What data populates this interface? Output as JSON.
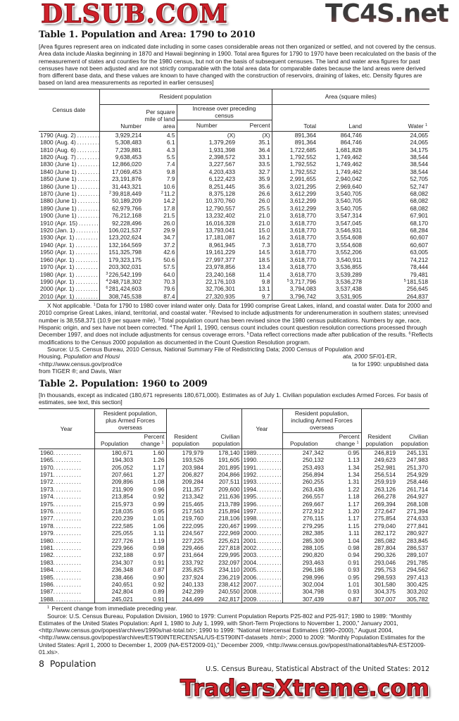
{
  "watermarks": {
    "top_right": "TC4S.net",
    "middle": "DLSUB.COM",
    "bottom": "TradersXtreme.com"
  },
  "table1": {
    "title": "Table 1. Population and Area: 1790 to 2010",
    "intro": "[Area figures represent area on indicated date including in some cases considerable areas not then organized or settled, and not covered by the census. Area data include Alaska beginning in 1870 and Hawaii beginning in 1900. Total area figures for 1790 to 1970 have been recalculated on the basis of the remeasurement of states and counties for the 1980 census, but not on the basis of subsequent censuses. The land and water area figures for past censuses have not been adjusted and are not strictly comparable with the total area data for comparable dates because the land areas were derived from different base data, and these values are known to have changed with the construction of reservoirs, draining of lakes, etc. Density figures are based on land area measurements as reported in earlier censuses]",
    "headers": {
      "census_date": "Census date",
      "resident_population": "Resident population",
      "area": "Area (square miles)",
      "number": "Number",
      "per_square_mile": "Per square mile of land area",
      "increase": "Increase over preceding census",
      "inc_number": "Number",
      "inc_percent": "Percent",
      "total": "Total",
      "land": "Land",
      "water": "Water",
      "water_note": "1"
    },
    "rows": [
      [
        "1790 (Aug. 2)",
        "3,929,214",
        "4.5",
        "(X)",
        "(X)",
        "891,364",
        "864,746",
        "24,065"
      ],
      [
        "1800 (Aug. 4)",
        "5,308,483",
        "6.1",
        "1,379,269",
        "35.1",
        "891,364",
        "864,746",
        "24,065"
      ],
      [
        "1810 (Aug. 6)",
        "7,239,881",
        "4.3",
        "1,931,398",
        "36.4",
        "1,722,685",
        "1,681,828",
        "34,175"
      ],
      [
        "1820 (Aug. 7)",
        "9,638,453",
        "5.5",
        "2,398,572",
        "33.1",
        "1,792,552",
        "1,749,462",
        "38,544"
      ],
      [
        "1830 (June 1)",
        "12,866,020",
        "7.4",
        "3,227,567",
        "33.5",
        "1,792,552",
        "1,749,462",
        "38,544"
      ],
      [
        "1840 (June 1)",
        "17,069,453",
        "9.8",
        "4,203,433",
        "32.7",
        "1,792,552",
        "1,749,462",
        "38,544"
      ],
      [
        "1850 (June 1)",
        "23,191,876",
        "7.9",
        "6,122,423",
        "35.9",
        "2,991,655",
        "2,940,042",
        "52,705"
      ],
      [
        "1860 (June 1)",
        "31,443,321",
        "10.6",
        "8,251,445",
        "35.6",
        "3,021,295",
        "2,969,640",
        "52,747"
      ],
      [
        "1870 (June 1)",
        {
          "note": "2",
          "value": "39,818,449"
        },
        {
          "note": "2",
          "value": "11.2"
        },
        "8,375,128",
        "26.6",
        "3,612,299",
        "3,540,705",
        "68,082"
      ],
      [
        "1880 (June 1)",
        "50,189,209",
        "14.2",
        "10,370,760",
        "26.0",
        "3,612,299",
        "3,540,705",
        "68,082"
      ],
      [
        "1890 (June 1)",
        "62,979,766",
        "17.8",
        "12,790,557",
        "25.5",
        "3,612,299",
        "3,540,705",
        "68,082"
      ],
      [
        "1900 (June 1)",
        "76,212,168",
        "21.5",
        "13,232,402",
        "21.0",
        "3,618,770",
        "3,547,314",
        "67,901"
      ],
      [
        "1910 (Apr. 15)",
        "92,228,496",
        "26.0",
        "16,016,328",
        "21.0",
        "3,618,770",
        "3,547,045",
        "68,170"
      ],
      [
        "1920 (Jan. 1)",
        "106,021,537",
        "29.9",
        "13,793,041",
        "15.0",
        "3,618,770",
        "3,546,931",
        "68,284"
      ],
      [
        "1930 (Apr. 1)",
        "123,202,624",
        "34.7",
        "17,181,087",
        "16.2",
        "3,618,770",
        "3,554,608",
        "60,607"
      ],
      [
        "1940 (Apr. 1)",
        "132,164,569",
        "37.2",
        "8,961,945",
        "7.3",
        "3,618,770",
        "3,554,608",
        "60,607"
      ],
      [
        "1950 (Apr. 1)",
        "151,325,798",
        "42.6",
        "19,161,229",
        "14.5",
        "3,618,770",
        "3,552,206",
        "63,005"
      ],
      [
        "1960 (Apr. 1)",
        "179,323,175",
        "50.6",
        "27,997,377",
        "18.5",
        "3,618,770",
        "3,540,911",
        "74,212"
      ],
      [
        "1970 (Apr. 1)",
        "203,302,031",
        "57.5",
        "23,978,856",
        "13.4",
        "3,618,770",
        "3,536,855",
        "78,444"
      ],
      [
        "1980 (Apr. 1)",
        {
          "note": "3",
          "value": "226,542,199"
        },
        "64.0",
        "23,240,168",
        "11.4",
        "3,618,770",
        "3,539,289",
        "79,481"
      ],
      [
        "1990 (Apr. 1)",
        {
          "note": "4",
          "value": "248,718,302"
        },
        "70.3",
        "22,176,103",
        "9.8",
        {
          "note": "5",
          "value": "3,717,796"
        },
        "3,536,278",
        {
          "note": "5",
          "value": "181,518"
        }
      ],
      [
        "2000 (Apr. 1)",
        {
          "note": "6",
          "value": "281,424,603"
        },
        "79.6",
        "32,706,301",
        "13.1",
        "3,794,083",
        "3,537,438",
        "256,645"
      ],
      [
        "2010 (Apr. 1)",
        "308,745,538",
        "87.4",
        "27,320,935",
        "9.7",
        "3,796,742",
        "3,531,905",
        "264,837"
      ]
    ],
    "footnotes": [
      {
        "t": "X Not applicable. "
      },
      {
        "sup": "1"
      },
      {
        "t": "Data for 1790 to 1980 cover inland water only. Data for 1990 comprise Great Lakes, inland, and coastal water. Data for 2000 and 2010 comprise Great Lakes, inland, territorial, and coastal water. "
      },
      {
        "sup": "2"
      },
      {
        "t": "Revised to include adjustments for underenumeration in southern states; unrevised number is 38,558,371 (10.9 per square mile). "
      },
      {
        "sup": "3"
      },
      {
        "t": "Total population count has been revised since the 1980 census publications. Numbers by age, race, Hispanic origin, and sex have not been corrected. "
      },
      {
        "sup": "4"
      },
      {
        "t": "The April 1, 1990, census count includes count question resolution corrections processed through December 1997, and does not include adjustments for census coverage errors. "
      },
      {
        "sup": "5"
      },
      {
        "t": "Data reflect corrections made after publication of the results. "
      },
      {
        "sup": "6"
      },
      {
        "t": "Reflects modifications to the Census 2000 population as documented in the Count Question Resolution program."
      }
    ],
    "source_lines": [
      {
        "left": "Source: U.S. Census Bureau, 2010 Census, National Summary File of Redistricting Data; 2000 Census of Population and",
        "right": ""
      },
      {
        "left": "Housing, ",
        "left_italic": "Population and Housi",
        "right_italic": "ata, 2000",
        "right": " SF/01-ER,"
      },
      {
        "left": "<http://www.census.gov/prod/ce",
        "right": "ta for 1990: unpublished data"
      },
      {
        "left": "from TIGER ®; and Davis, Warr",
        "right": ""
      }
    ]
  },
  "table2": {
    "title": "Table 2. Population: 1960 to 2009",
    "intro": "[In thousands, except as indicated (180,671 represents 180,671,000). Estimates as of July 1. Civilian population excludes Armed Forces. For basis of estimates, see text, this section]",
    "headers": {
      "year": "Year",
      "group_left": "Resident population, plus Armed Forces overseas",
      "group_right": "Resident population, including Armed Forces overseas",
      "population": "Population",
      "percent_change": "Percent change",
      "percent_note": "1",
      "resident": "Resident population",
      "civilian": "Civilian population"
    },
    "rows": [
      [
        "1960.",
        "180,671",
        "1.60",
        "179,979",
        "178,140",
        "1989.",
        "247,342",
        "0.95",
        "246,819",
        "245,131"
      ],
      [
        "1965.",
        "194,303",
        "1.26",
        "193,526",
        "191,605",
        "1990.",
        "250,132",
        "1.13",
        "249,623",
        "247,983"
      ],
      [
        "1970.",
        "205,052",
        "1.17",
        "203,984",
        "201,895",
        "1991.",
        "253,493",
        "1.34",
        "252,981",
        "251,370"
      ],
      [
        "1971.",
        "207,661",
        "1.27",
        "206,827",
        "204,866",
        "1992.",
        "256,894",
        "1.34",
        "256,514",
        "254,929"
      ],
      [
        "1972.",
        "209,896",
        "1.08",
        "209,284",
        "207,511",
        "1993.",
        "260,255",
        "1.31",
        "259,919",
        "258,446"
      ],
      [
        "1973.",
        "211,909",
        "0.96",
        "211,357",
        "209,600",
        "1994.",
        "263,436",
        "1.22",
        "263,126",
        "261,714"
      ],
      [
        "1974.",
        "213,854",
        "0.92",
        "213,342",
        "211,636",
        "1995.",
        "266,557",
        "1.18",
        "266,278",
        "264,927"
      ],
      [
        "1975.",
        "215,973",
        "0.99",
        "215,465",
        "213,789",
        "1996.",
        "269,667",
        "1.17",
        "269,394",
        "268,108"
      ],
      [
        "1976.",
        "218,035",
        "0.95",
        "217,563",
        "215,894",
        "1997.",
        "272,912",
        "1.20",
        "272,647",
        "271,394"
      ],
      [
        "1977.",
        "220,239",
        "1.01",
        "219,760",
        "218,106",
        "1998.",
        "276,115",
        "1.17",
        "275,854",
        "274,633"
      ],
      [
        "1978.",
        "222,585",
        "1.06",
        "222,095",
        "220,467",
        "1999.",
        "279,295",
        "1.15",
        "279,040",
        "277,841"
      ],
      [
        "1979.",
        "225,055",
        "1.11",
        "224,567",
        "222,969",
        "2000.",
        "282,385",
        "1.11",
        "282,172",
        "280,927"
      ],
      [
        "1980.",
        "227,726",
        "1.19",
        "227,225",
        "225,621",
        "2001.",
        "285,309",
        "1.04",
        "285,082",
        "283,845"
      ],
      [
        "1981.",
        "229,966",
        "0.98",
        "229,466",
        "227,818",
        "2002.",
        "288,105",
        "0.98",
        "287,804",
        "286,537"
      ],
      [
        "1982.",
        "232,188",
        "0.97",
        "231,664",
        "229,995",
        "2003.",
        "290,820",
        "0.94",
        "290,326",
        "289,107"
      ],
      [
        "1983.",
        "234,307",
        "0.91",
        "233,792",
        "232,097",
        "2004.",
        "293,463",
        "0.91",
        "293,046",
        "291,785"
      ],
      [
        "1984.",
        "236,348",
        "0.87",
        "235,825",
        "234,110",
        "2005.",
        "296,186",
        "0.93",
        "295,753",
        "294,562"
      ],
      [
        "1985.",
        "238,466",
        "0.90",
        "237,924",
        "236,219",
        "2006.",
        "298,996",
        "0.95",
        "298,593",
        "297,413"
      ],
      [
        "1986.",
        "240,651",
        "0.92",
        "240,133",
        "238,412",
        "2007.",
        "302,004",
        "1.01",
        "301,580",
        "300,425"
      ],
      [
        "1987.",
        "242,804",
        "0.89",
        "242,289",
        "240,550",
        "2008.",
        "304,798",
        "0.93",
        "304,375",
        "303,202"
      ],
      [
        "1988.",
        "245,021",
        "0.91",
        "244,499",
        "242,817",
        "2009.",
        "307,439",
        "0.87",
        "307,007",
        "305,782"
      ]
    ],
    "footnote_sup": "1",
    "footnote": "Percent change from immediate preceding year.",
    "source": "Source: U.S. Census Bureau, Population Division, 1960 to 1979: Current Population Reports P25-802 and P25-917; 1980 to 1989: “Monthly Estimates of the United States Population: April 1, 1980 to July 1, 1999, with Short-Term Projections to November 1, 2000,”  January 2001, <http://www.census.gov/popest/archives/1990s/nat-total.txt>; 1990 to 1999: “National Intercensal Estimates (1990–2000),” August 2004, <http://www.census.gov/popest/archives/EST90INTERCENSAL/US-EST90INT-datasets .html>; 2000 to 2009: “Monthly Population Estimates for the United States: April 1, 2000 to December 1, 2009 (NA-EST2009-01),” December 2009, <http://www.census.gov/popest/national/tables/NA-EST2009-01.xls>."
  },
  "footer": {
    "page_number": "8",
    "section": "Population",
    "publication": "U.S. Census Bureau, Statistical Abstract of the United States: 2012"
  }
}
